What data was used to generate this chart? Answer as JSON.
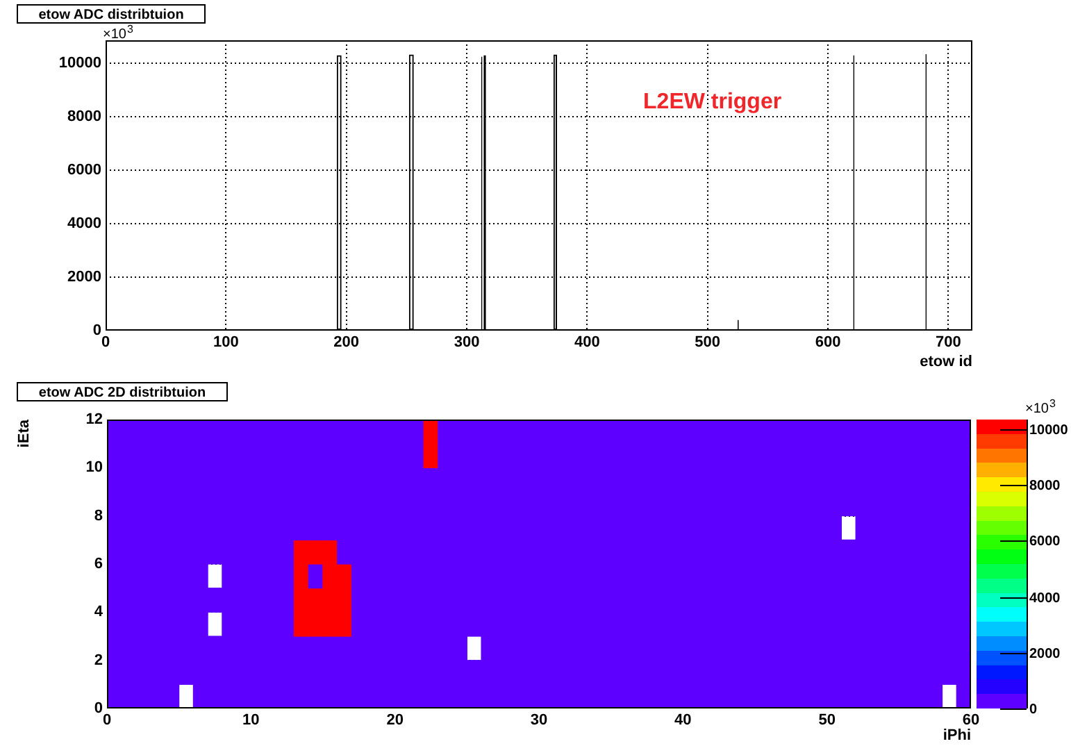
{
  "chart_data": [
    {
      "type": "histogram",
      "title": "etow ADC distribtuion",
      "xlabel": "etow id",
      "ylabel": "×10$^{3}$",
      "bins": [
        0,
        192,
        196,
        252,
        256,
        312,
        313,
        314,
        316,
        372,
        375,
        525,
        526,
        621,
        622,
        681,
        682,
        720
      ],
      "values": [
        50,
        10300,
        50,
        10330,
        50,
        10250,
        50,
        10300,
        50,
        10330,
        50,
        400,
        50,
        10300,
        50,
        10350,
        50
      ],
      "color": "#000000",
      "xlim": [
        0,
        720
      ],
      "xticks": [
        0,
        100,
        200,
        300,
        400,
        500,
        600,
        700
      ],
      "ylim": [
        0,
        10860
      ],
      "yticks": [
        0,
        2000,
        4000,
        6000,
        8000,
        10000
      ],
      "grid": true,
      "annotations": [
        "L2EW trigger"
      ]
    },
    {
      "type": "heatmap",
      "title": "etow ADC 2D distribtuion",
      "xlabel": "iPhi",
      "ylabel": "iEta",
      "x": [
        0.5,
        1.5,
        2.5,
        3.5,
        4.5,
        5.5,
        6.5,
        7.5,
        8.5,
        9.5,
        10.5,
        11.5,
        12.5,
        13.5,
        14.5,
        15.5,
        16.5,
        17.5,
        18.5,
        19.5,
        20.5,
        21.5,
        22.5,
        23.5,
        24.5,
        25.5,
        26.5,
        27.5,
        28.5,
        29.5,
        30.5,
        31.5,
        32.5,
        33.5,
        34.5,
        35.5,
        36.5,
        37.5,
        38.5,
        39.5,
        40.5,
        41.5,
        42.5,
        43.5,
        44.5,
        45.5,
        46.5,
        47.5,
        48.5,
        49.5,
        50.5,
        51.5,
        52.5,
        53.5,
        54.5,
        55.5,
        56.5,
        57.5,
        58.5,
        59.5
      ],
      "cells": [
        [
          50,
          50,
          50,
          50,
          50,
          50,
          50,
          50,
          50,
          50,
          50,
          50,
          50,
          50,
          50,
          50,
          50,
          50,
          50,
          50,
          50,
          50,
          10350,
          50,
          50,
          50,
          50,
          50,
          50,
          50,
          50,
          50,
          50,
          50,
          50,
          50,
          50,
          50,
          50,
          50,
          50,
          50,
          50,
          50,
          50,
          50,
          50,
          50,
          50,
          50,
          50,
          50,
          50,
          50,
          50,
          50,
          50,
          50,
          50,
          50
        ],
        [
          50,
          50,
          50,
          50,
          50,
          50,
          50,
          50,
          50,
          50,
          50,
          50,
          50,
          50,
          50,
          50,
          50,
          50,
          50,
          50,
          50,
          50,
          10300,
          50,
          50,
          50,
          50,
          50,
          50,
          50,
          50,
          50,
          50,
          50,
          50,
          50,
          50,
          50,
          50,
          50,
          50,
          50,
          50,
          50,
          50,
          50,
          50,
          50,
          50,
          50,
          50,
          50,
          50,
          50,
          50,
          50,
          50,
          50,
          50,
          50
        ],
        [
          50,
          50,
          50,
          50,
          50,
          50,
          50,
          50,
          50,
          50,
          50,
          50,
          50,
          50,
          50,
          50,
          50,
          50,
          50,
          50,
          50,
          50,
          50,
          50,
          50,
          50,
          50,
          50,
          50,
          50,
          50,
          50,
          50,
          50,
          50,
          50,
          50,
          50,
          50,
          50,
          50,
          50,
          50,
          50,
          50,
          50,
          50,
          50,
          50,
          50,
          50,
          50,
          50,
          50,
          50,
          50,
          50,
          50,
          50,
          50
        ],
        [
          50,
          50,
          50,
          50,
          50,
          50,
          50,
          50,
          50,
          50,
          50,
          50,
          50,
          50,
          50,
          50,
          50,
          50,
          50,
          50,
          50,
          50,
          50,
          50,
          50,
          50,
          50,
          50,
          50,
          50,
          50,
          50,
          50,
          50,
          50,
          50,
          50,
          50,
          50,
          50,
          50,
          50,
          50,
          50,
          50,
          50,
          400,
          50,
          50,
          50,
          50,
          50,
          50,
          50,
          50,
          50,
          50,
          50,
          50,
          50
        ],
        [
          50,
          50,
          50,
          50,
          50,
          50,
          50,
          50,
          50,
          50,
          50,
          50,
          50,
          50,
          50,
          50,
          50,
          50,
          50,
          50,
          50,
          50,
          50,
          50,
          50,
          50,
          50,
          50,
          50,
          50,
          50,
          50,
          50,
          50,
          50,
          50,
          50,
          50,
          50,
          50,
          50,
          50,
          50,
          50,
          50,
          50,
          50,
          50,
          50,
          50,
          50,
          null,
          50,
          50,
          50,
          50,
          50,
          50,
          50,
          50
        ],
        [
          50,
          50,
          50,
          50,
          50,
          50,
          50,
          50,
          50,
          50,
          50,
          50,
          50,
          10330,
          10330,
          10330,
          50,
          50,
          50,
          50,
          50,
          50,
          50,
          50,
          50,
          50,
          50,
          50,
          50,
          50,
          50,
          50,
          50,
          50,
          50,
          50,
          50,
          50,
          50,
          50,
          50,
          50,
          50,
          50,
          50,
          50,
          50,
          50,
          50,
          50,
          50,
          50,
          50,
          50,
          50,
          50,
          50,
          50,
          50,
          50
        ],
        [
          50,
          50,
          50,
          50,
          50,
          50,
          50,
          null,
          50,
          50,
          50,
          50,
          50,
          10250,
          50,
          10300,
          10300,
          50,
          50,
          50,
          50,
          50,
          50,
          50,
          50,
          50,
          50,
          50,
          50,
          50,
          50,
          50,
          50,
          50,
          50,
          50,
          50,
          50,
          50,
          50,
          50,
          50,
          50,
          50,
          50,
          50,
          50,
          50,
          50,
          50,
          50,
          50,
          50,
          50,
          50,
          50,
          50,
          50,
          50,
          50
        ],
        [
          50,
          50,
          50,
          50,
          50,
          50,
          50,
          50,
          50,
          50,
          50,
          50,
          50,
          10330,
          10330,
          10330,
          10330,
          50,
          50,
          50,
          50,
          50,
          50,
          50,
          50,
          50,
          50,
          50,
          50,
          50,
          50,
          50,
          50,
          50,
          50,
          50,
          50,
          50,
          50,
          50,
          50,
          50,
          50,
          50,
          50,
          50,
          50,
          50,
          50,
          50,
          50,
          50,
          50,
          50,
          50,
          50,
          50,
          50,
          50,
          50
        ],
        [
          50,
          50,
          50,
          50,
          50,
          50,
          50,
          null,
          50,
          50,
          50,
          50,
          50,
          10300,
          10300,
          10300,
          10300,
          50,
          50,
          50,
          50,
          50,
          50,
          50,
          50,
          50,
          50,
          50,
          50,
          50,
          50,
          50,
          50,
          50,
          50,
          50,
          50,
          50,
          50,
          50,
          50,
          50,
          50,
          50,
          50,
          50,
          50,
          50,
          50,
          50,
          50,
          50,
          50,
          50,
          50,
          50,
          50,
          50,
          50,
          50
        ],
        [
          50,
          50,
          50,
          50,
          50,
          50,
          50,
          50,
          50,
          50,
          50,
          50,
          50,
          50,
          50,
          50,
          50,
          50,
          50,
          50,
          50,
          50,
          50,
          50,
          50,
          null,
          50,
          50,
          50,
          50,
          50,
          50,
          50,
          50,
          50,
          50,
          50,
          50,
          50,
          50,
          50,
          50,
          50,
          50,
          50,
          50,
          50,
          50,
          50,
          50,
          50,
          50,
          50,
          50,
          50,
          50,
          50,
          50,
          50,
          50
        ],
        [
          50,
          50,
          50,
          50,
          50,
          50,
          50,
          50,
          50,
          50,
          50,
          50,
          50,
          50,
          50,
          50,
          50,
          50,
          50,
          50,
          50,
          50,
          50,
          50,
          50,
          50,
          50,
          50,
          50,
          50,
          50,
          50,
          50,
          50,
          50,
          50,
          50,
          50,
          50,
          50,
          50,
          50,
          50,
          50,
          50,
          50,
          50,
          50,
          50,
          50,
          50,
          50,
          50,
          50,
          50,
          50,
          50,
          50,
          50,
          50
        ],
        [
          50,
          50,
          50,
          50,
          50,
          null,
          50,
          50,
          50,
          50,
          50,
          50,
          50,
          50,
          50,
          50,
          50,
          50,
          50,
          50,
          50,
          50,
          50,
          50,
          50,
          50,
          50,
          50,
          50,
          50,
          50,
          50,
          50,
          50,
          50,
          50,
          50,
          50,
          50,
          50,
          50,
          50,
          50,
          50,
          50,
          50,
          50,
          50,
          50,
          50,
          50,
          50,
          50,
          50,
          50,
          50,
          50,
          50,
          null,
          50
        ]
      ],
      "xlim": [
        0,
        60
      ],
      "xticks": [
        0,
        10,
        20,
        30,
        40,
        50,
        60
      ],
      "ylim": [
        0,
        12
      ],
      "yticks": [
        0,
        2,
        4,
        6,
        8,
        10,
        12
      ],
      "clim": [
        0,
        10350
      ],
      "cticks": [
        0,
        2000,
        4000,
        6000,
        8000,
        10000
      ],
      "clabel": "×10$^{3}$",
      "grid": true
    }
  ]
}
